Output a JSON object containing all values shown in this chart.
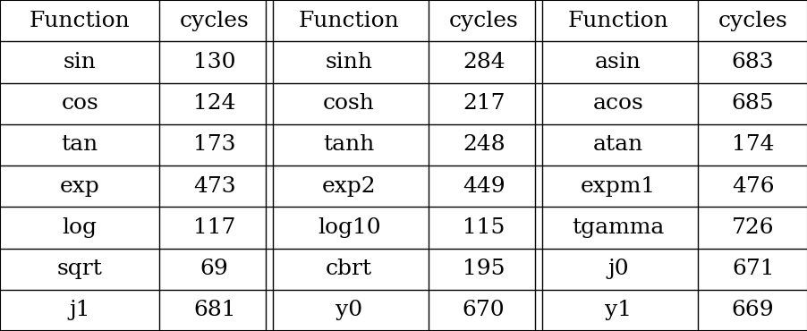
{
  "headers": [
    "Function",
    "cycles",
    "Function",
    "cycles",
    "Function",
    "cycles"
  ],
  "rows": [
    [
      "sin",
      "130",
      "sinh",
      "284",
      "asin",
      "683"
    ],
    [
      "cos",
      "124",
      "cosh",
      "217",
      "acos",
      "685"
    ],
    [
      "tan",
      "173",
      "tanh",
      "248",
      "atan",
      "174"
    ],
    [
      "exp",
      "473",
      "exp2",
      "449",
      "expm1",
      "476"
    ],
    [
      "log",
      "117",
      "log10",
      "115",
      "tgamma",
      "726"
    ],
    [
      "sqrt",
      "69",
      "cbrt",
      "195",
      "j0",
      "671"
    ],
    [
      "j1",
      "681",
      "y0",
      "670",
      "y1",
      "669"
    ]
  ],
  "col_widths": [
    1.6,
    1.1,
    1.6,
    1.1,
    1.6,
    1.1
  ],
  "background_color": "#ffffff",
  "line_color": "#000000",
  "text_color": "#000000",
  "font_size": 18,
  "double_line_after_cols": [
    1,
    3
  ],
  "figsize": [
    9.03,
    3.7
  ],
  "dpi": 100
}
